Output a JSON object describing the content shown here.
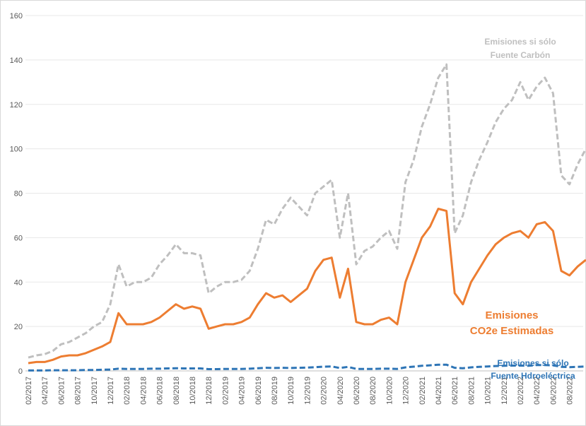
{
  "chart_data": {
    "type": "line",
    "categories": [
      "02/2017",
      null,
      "04/2017",
      null,
      "06/2017",
      null,
      "08/2017",
      null,
      "10/2017",
      null,
      "12/2017",
      null,
      "02/2018",
      null,
      "04/2018",
      null,
      "06/2018",
      null,
      "08/2018",
      null,
      "10/2018",
      null,
      "12/2018",
      null,
      "02/2019",
      null,
      "04/2019",
      null,
      "06/2019",
      null,
      "08/2019",
      null,
      "10/2019",
      null,
      "12/2019",
      null,
      "02/2020",
      null,
      "04/2020",
      null,
      "06/2020",
      null,
      "08/2020",
      null,
      "10/2020",
      null,
      "12/2020",
      null,
      "02/2021",
      null,
      "04/2021",
      null,
      "06/2021",
      null,
      "08/2021",
      null,
      "10/2021",
      null,
      "12/2021",
      null,
      "02/2022",
      null,
      "04/2022",
      null,
      "06/2022",
      null,
      "08/2022",
      null,
      null
    ],
    "series": [
      {
        "name": [
          "Emisiones si sólo",
          "Fuente Carbón"
        ],
        "color": "#bfbfbf",
        "dash": true,
        "values": [
          6,
          7,
          7.5,
          9,
          12,
          13,
          15,
          17,
          20,
          22,
          30,
          48,
          38,
          40,
          40,
          42,
          48,
          52,
          57,
          53,
          53,
          52,
          35,
          38,
          40,
          40,
          41,
          45,
          55,
          68,
          66,
          73,
          78,
          74,
          70,
          80,
          83,
          86,
          60,
          80,
          48,
          54,
          56,
          60,
          63,
          55,
          85,
          95,
          110,
          120,
          132,
          138,
          62,
          70,
          85,
          95,
          103,
          112,
          118,
          122,
          130,
          122,
          128,
          132,
          125,
          88,
          84,
          93,
          100
        ]
      },
      {
        "name": [
          "Emisiones",
          "CO2e Estimadas"
        ],
        "color": "#ed7d31",
        "dash": false,
        "values": [
          3.5,
          4,
          4,
          5,
          6.5,
          7,
          7,
          8,
          9.5,
          11,
          13,
          26,
          21,
          21,
          21,
          22,
          24,
          27,
          30,
          28,
          29,
          28,
          19,
          20,
          21,
          21,
          22,
          24,
          30,
          35,
          33,
          34,
          31,
          34,
          37,
          45,
          50,
          51,
          33,
          46,
          22,
          21,
          21,
          23,
          24,
          21,
          40,
          50,
          60,
          65,
          73,
          72,
          35,
          30,
          40,
          46,
          52,
          57,
          60,
          62,
          63,
          60,
          66,
          67,
          63,
          45,
          43,
          47,
          50
        ]
      },
      {
        "name": [
          "Emisiones si sólo",
          "Fuente Hdroeléctrica"
        ],
        "color": "#2e75b6",
        "dash": true,
        "values": [
          0.2,
          0.2,
          0.2,
          0.3,
          0.3,
          0.3,
          0.3,
          0.4,
          0.4,
          0.5,
          0.6,
          1,
          0.9,
          0.9,
          0.9,
          1,
          1,
          1.1,
          1.2,
          1.1,
          1.1,
          1.1,
          0.8,
          0.8,
          0.9,
          0.9,
          0.9,
          1,
          1.2,
          1.4,
          1.3,
          1.4,
          1.3,
          1.4,
          1.5,
          1.7,
          1.9,
          2,
          1.3,
          1.8,
          0.9,
          0.9,
          0.9,
          1,
          1,
          0.9,
          1.6,
          1.9,
          2.3,
          2.5,
          2.8,
          2.8,
          1.4,
          1.2,
          1.6,
          1.8,
          2,
          2.2,
          2.3,
          2.4,
          2.4,
          2.3,
          2.6,
          2.6,
          2.5,
          1.8,
          1.7,
          1.8,
          2
        ]
      }
    ],
    "ylim": [
      0,
      160
    ],
    "yticks": [
      0,
      20,
      40,
      60,
      80,
      100,
      120,
      140,
      160
    ],
    "grid": true
  }
}
